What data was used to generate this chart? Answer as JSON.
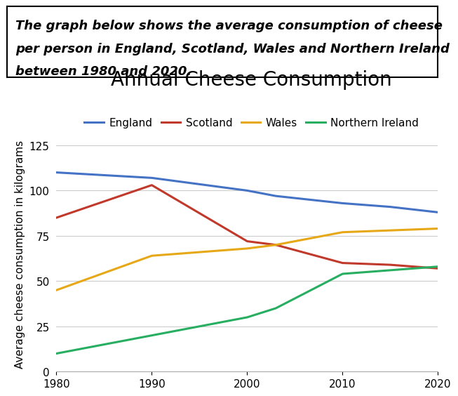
{
  "title": "Annual Cheese Consumption",
  "ylabel": "Average cheese consumption in kilograms",
  "description_line1": "The graph below shows the average consumption of cheese",
  "description_line2": "per person in England, Scotland, Wales and Northern Ireland",
  "description_line3": "between 1980 and 2020.",
  "years": [
    1980,
    1990,
    2000,
    2003,
    2010,
    2015,
    2020
  ],
  "series": {
    "England": {
      "color": "#4472C4",
      "values": [
        110,
        107,
        100,
        97,
        93,
        91,
        88
      ]
    },
    "Scotland": {
      "color": "#C0392B",
      "values": [
        85,
        103,
        72,
        70,
        60,
        59,
        57
      ]
    },
    "Wales": {
      "color": "#E6A817",
      "values": [
        45,
        64,
        68,
        70,
        77,
        78,
        79
      ]
    },
    "Northern Ireland": {
      "color": "#27AE60",
      "values": [
        10,
        20,
        30,
        35,
        54,
        56,
        58
      ]
    }
  },
  "xlim": [
    1980,
    2020
  ],
  "ylim": [
    0,
    130
  ],
  "yticks": [
    0,
    25,
    50,
    75,
    100,
    125
  ],
  "xticks": [
    1980,
    1990,
    2000,
    2010,
    2020
  ],
  "title_fontsize": 20,
  "legend_fontsize": 11,
  "axis_label_fontsize": 11,
  "tick_fontsize": 11,
  "description_fontsize": 13,
  "background_color": "#FFFFFF",
  "grid_color": "#CCCCCC",
  "linewidth": 2.2
}
